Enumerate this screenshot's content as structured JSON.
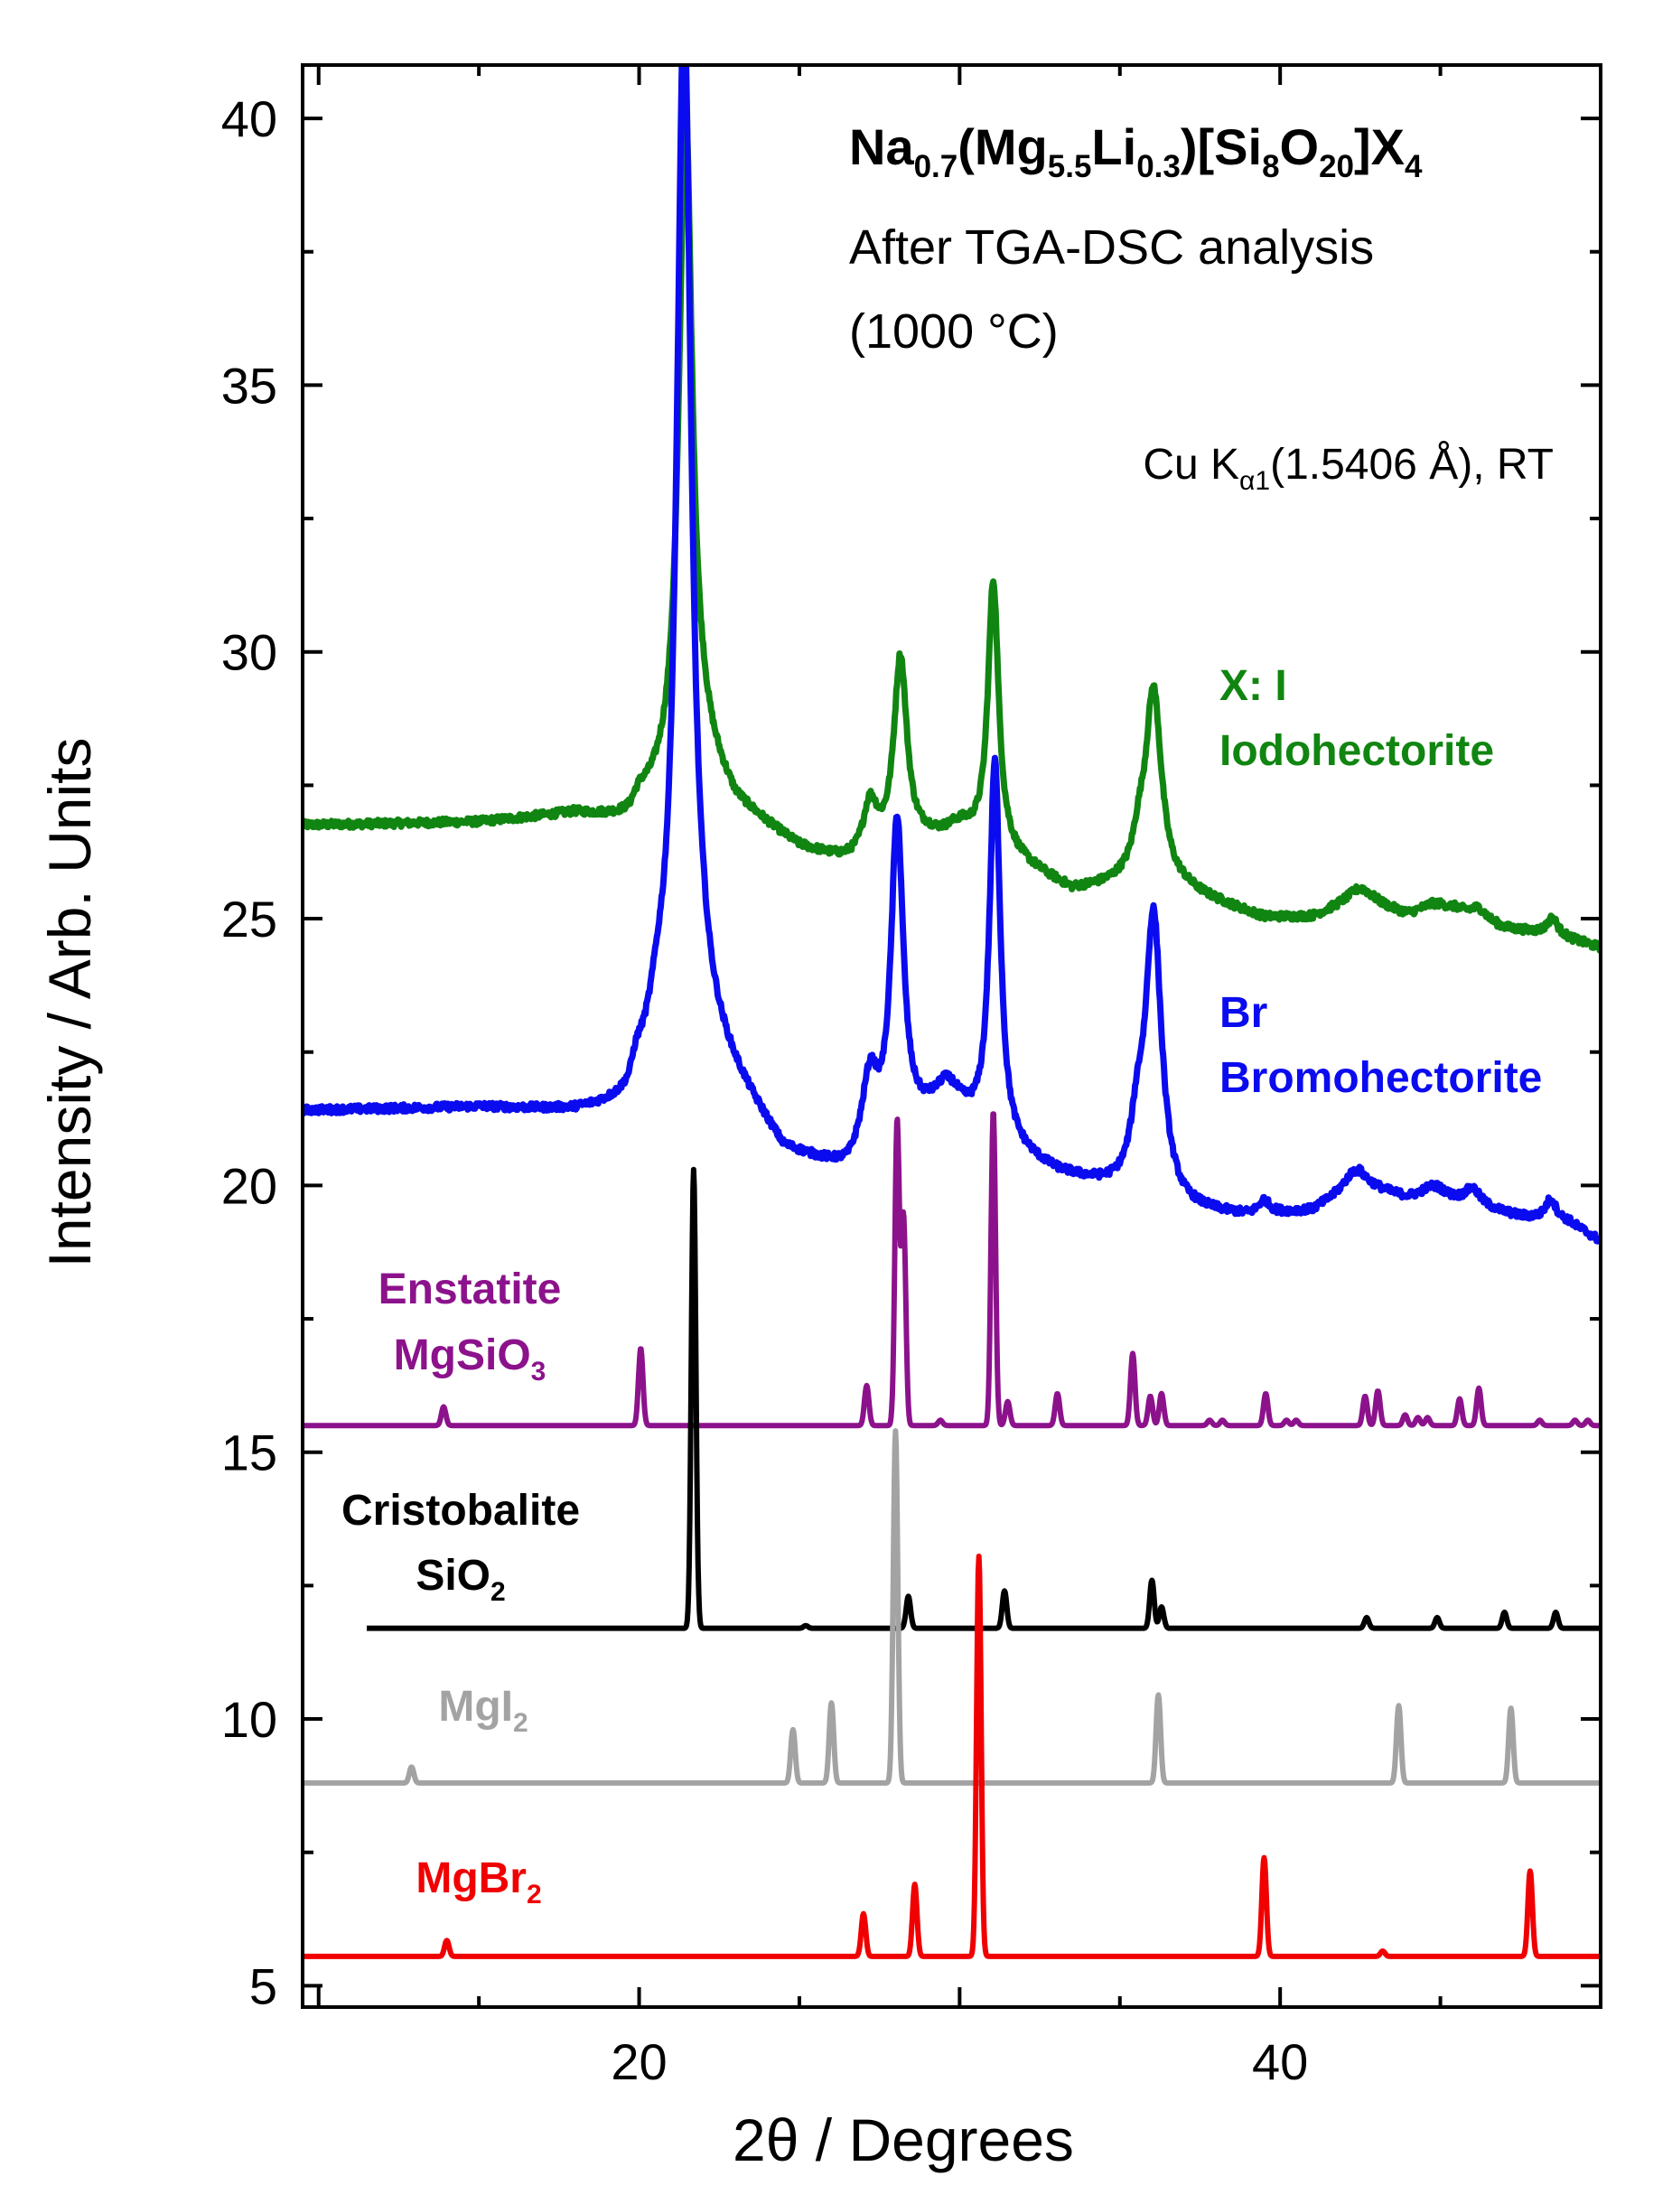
{
  "chart_data": {
    "type": "line",
    "title": {
      "formula": {
        "parts": [
          {
            "t": "Na"
          },
          {
            "t": "0.7",
            "sub": true
          },
          {
            "t": "(Mg"
          },
          {
            "t": "5.5",
            "sub": true
          },
          {
            "t": "Li"
          },
          {
            "t": "0.3",
            "sub": true
          },
          {
            "t": ")[Si"
          },
          {
            "t": "8",
            "sub": true
          },
          {
            "t": "O"
          },
          {
            "t": "20",
            "sub": true
          },
          {
            "t": "]X"
          },
          {
            "t": "4",
            "sub": true
          }
        ]
      },
      "line2": "After TGA-DSC analysis",
      "line3": "(1000 °C)"
    },
    "radiation": {
      "pre": "Cu K",
      "sub": "α1",
      "post": "(1.5406 Å), RT"
    },
    "xlabel": "2θ / Degrees",
    "ylabel": "Intensity / Arb. Units",
    "xlim": [
      9.5,
      50
    ],
    "ylim": [
      4.6,
      41
    ],
    "xticks": [
      20,
      40
    ],
    "yticks": [
      5,
      10,
      15,
      20,
      25,
      30,
      35,
      40
    ],
    "series": [
      {
        "name": "X: I Iodohectorite",
        "label_lines": [
          [
            {
              "t": "X: I"
            }
          ],
          [
            {
              "t": "Iodohectorite"
            }
          ]
        ],
        "color": "#118511",
        "kind": "measured",
        "x_range": [
          9.5,
          50
        ],
        "baseline": [
          [
            9.5,
            26.75
          ],
          [
            15,
            26.8
          ],
          [
            18,
            26.95
          ],
          [
            19.7,
            26.8
          ],
          [
            20.6,
            27.3
          ],
          [
            22,
            28
          ],
          [
            23,
            27.1
          ],
          [
            25,
            26.3
          ],
          [
            27,
            25.9
          ],
          [
            29,
            26.4
          ],
          [
            31,
            26.3
          ],
          [
            33.5,
            25.5
          ],
          [
            35,
            25.6
          ],
          [
            37,
            25.5
          ],
          [
            39.5,
            25
          ],
          [
            41,
            25
          ],
          [
            42.5,
            25.3
          ],
          [
            44,
            25
          ],
          [
            45.5,
            25.1
          ],
          [
            47,
            24.8
          ],
          [
            48.5,
            24.7
          ],
          [
            50,
            24.45
          ]
        ],
        "peaks": [
          [
            20.0,
            0.25,
            0.3
          ],
          [
            21.45,
            12.4,
            0.25
          ],
          [
            27.2,
            1.1,
            0.3
          ],
          [
            28.15,
            3.6,
            0.25
          ],
          [
            30.0,
            0.3,
            0.5
          ],
          [
            31.05,
            4.95,
            0.2
          ],
          [
            35.6,
            0.6,
            0.25
          ],
          [
            36.05,
            3.65,
            0.3
          ],
          [
            42.5,
            0.25,
            0.6
          ],
          [
            44.8,
            0.2,
            0.6
          ],
          [
            46.2,
            0.2,
            0.3
          ],
          [
            48.5,
            0.3,
            0.2
          ]
        ]
      },
      {
        "name": "Br Bromohectorite",
        "label_lines": [
          [
            {
              "t": "Br"
            }
          ],
          [
            {
              "t": "Bromohectorite"
            }
          ]
        ],
        "color": "#0b0bf0",
        "kind": "measured",
        "x_range": [
          9.5,
          50
        ],
        "baseline": [
          [
            9.5,
            21.4
          ],
          [
            15,
            21.45
          ],
          [
            18,
            21.35
          ],
          [
            19.7,
            21.4
          ],
          [
            20.5,
            22.4
          ],
          [
            22,
            22.8
          ],
          [
            23,
            21.9
          ],
          [
            24.5,
            20.6
          ],
          [
            26.5,
            20.2
          ],
          [
            28,
            20.8
          ],
          [
            29.5,
            21.5
          ],
          [
            31,
            20.8
          ],
          [
            33,
            20.2
          ],
          [
            35,
            19.85
          ],
          [
            37,
            19.5
          ],
          [
            39,
            19.4
          ],
          [
            41,
            19.5
          ],
          [
            42.5,
            20
          ],
          [
            44,
            19.7
          ],
          [
            46,
            19.6
          ],
          [
            47.5,
            19.4
          ],
          [
            49,
            19.3
          ],
          [
            50,
            18.95
          ]
        ],
        "peaks": [
          [
            19.9,
            0.4,
            0.25
          ],
          [
            20.6,
            0.4,
            0.3
          ],
          [
            21.4,
            19.4,
            0.27
          ],
          [
            27.2,
            1.4,
            0.3
          ],
          [
            28.05,
            5.9,
            0.23
          ],
          [
            29.7,
            0.3,
            0.4
          ],
          [
            31.1,
            7.1,
            0.2
          ],
          [
            35.55,
            1.0,
            0.25
          ],
          [
            36.05,
            5.3,
            0.3
          ],
          [
            39.5,
            0.25,
            0.2
          ],
          [
            42.3,
            0.3,
            0.4
          ],
          [
            44.8,
            0.3,
            0.5
          ],
          [
            46,
            0.3,
            0.3
          ],
          [
            48.45,
            0.4,
            0.2
          ]
        ]
      },
      {
        "name": "Enstatite MgSiO3",
        "label_lines": [
          [
            {
              "t": "Enstatite"
            }
          ],
          [
            {
              "t": "MgSiO"
            },
            {
              "t": "3",
              "sub": true
            }
          ]
        ],
        "color": "#8c128c",
        "kind": "reference",
        "x_range": [
          9.5,
          50
        ],
        "base": 15.5,
        "peaks": [
          [
            13.9,
            0.35
          ],
          [
            20.05,
            1.45
          ],
          [
            27.1,
            0.75
          ],
          [
            28.05,
            5.7
          ],
          [
            28.25,
            3.9
          ],
          [
            29.4,
            0.1
          ],
          [
            31.05,
            5.9
          ],
          [
            31.5,
            0.45
          ],
          [
            33.05,
            0.6
          ],
          [
            35.4,
            1.35
          ],
          [
            35.95,
            0.55
          ],
          [
            36.3,
            0.6
          ],
          [
            37.8,
            0.1
          ],
          [
            38.2,
            0.1
          ],
          [
            39.55,
            0.6
          ],
          [
            40.2,
            0.1
          ],
          [
            40.5,
            0.1
          ],
          [
            42.65,
            0.55
          ],
          [
            43.05,
            0.65
          ],
          [
            43.9,
            0.2
          ],
          [
            44.3,
            0.15
          ],
          [
            44.6,
            0.15
          ],
          [
            45.6,
            0.5
          ],
          [
            46.2,
            0.7
          ],
          [
            48.1,
            0.1
          ],
          [
            49.2,
            0.1
          ],
          [
            49.6,
            0.1
          ]
        ]
      },
      {
        "name": "Cristobalite SiO2",
        "label_lines": [
          [
            {
              "t": "Cristobalite"
            }
          ],
          [
            {
              "t": "SiO"
            },
            {
              "t": "2",
              "sub": true
            }
          ]
        ],
        "color": "#000000",
        "kind": "reference",
        "x_range": [
          11.5,
          50
        ],
        "base": 11.7,
        "peaks": [
          [
            21.7,
            8.6
          ],
          [
            25.2,
            0.05
          ],
          [
            28.4,
            0.6
          ],
          [
            31.4,
            0.7
          ],
          [
            36.0,
            0.9
          ],
          [
            36.3,
            0.4
          ],
          [
            42.7,
            0.2
          ],
          [
            44.9,
            0.2
          ],
          [
            47.0,
            0.3
          ],
          [
            48.6,
            0.3
          ]
        ]
      },
      {
        "name": "MgI2",
        "label_lines": [
          [
            {
              "t": "MgI"
            },
            {
              "t": "2",
              "sub": true
            }
          ]
        ],
        "color": "#a3a3a3",
        "kind": "reference",
        "x_range": [
          9.5,
          50
        ],
        "base": 8.8,
        "peaks": [
          [
            12.9,
            0.3
          ],
          [
            24.8,
            1.0
          ],
          [
            26.0,
            1.5
          ],
          [
            28.0,
            6.6
          ],
          [
            36.2,
            1.65
          ],
          [
            43.7,
            1.45
          ],
          [
            47.2,
            1.4
          ]
        ]
      },
      {
        "name": "MgBr2",
        "label_lines": [
          [
            {
              "t": "MgBr"
            },
            {
              "t": "2",
              "sub": true
            }
          ]
        ],
        "color": "#f00000",
        "kind": "reference",
        "x_range": [
          9.5,
          50
        ],
        "base": 5.55,
        "peaks": [
          [
            14.0,
            0.3
          ],
          [
            27.0,
            0.8
          ],
          [
            28.6,
            1.35
          ],
          [
            30.6,
            7.5
          ],
          [
            39.5,
            1.85
          ],
          [
            43.2,
            0.1
          ],
          [
            47.8,
            1.6
          ]
        ]
      }
    ]
  }
}
